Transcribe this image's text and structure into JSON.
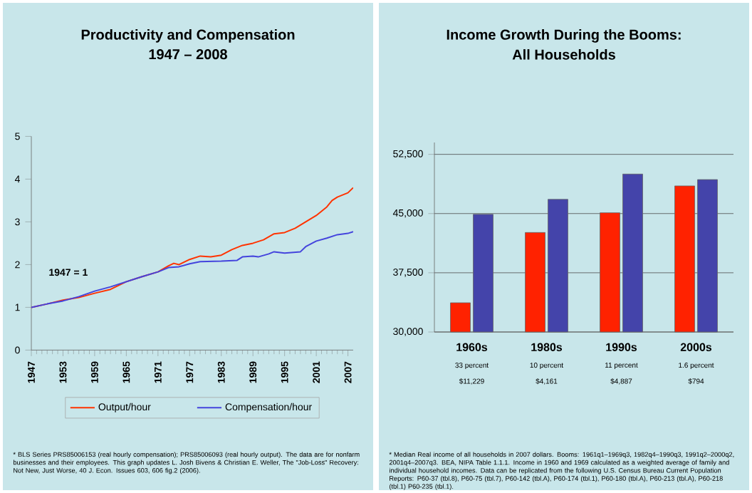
{
  "chart_data": [
    {
      "type": "line",
      "title": "Productivity and Compensation",
      "subtitle": "1947 – 2008",
      "xlim": [
        1947,
        2008
      ],
      "xticks": [
        1947,
        1953,
        1959,
        1965,
        1971,
        1977,
        1983,
        1989,
        1995,
        2001,
        2007
      ],
      "ylim": [
        0,
        5
      ],
      "yticks": [
        0,
        1,
        2,
        3,
        4,
        5
      ],
      "legend": "bottom",
      "grid": false,
      "series": [
        {
          "name": "Output/hour",
          "color": "#ff3300",
          "x": [
            1947,
            1950,
            1953,
            1956,
            1959,
            1962,
            1965,
            1968,
            1971,
            1973,
            1974,
            1975,
            1977,
            1979,
            1981,
            1983,
            1985,
            1987,
            1989,
            1991,
            1993,
            1995,
            1997,
            1999,
            2001,
            2003,
            2004,
            2005,
            2007,
            2008
          ],
          "values": [
            1.0,
            1.08,
            1.17,
            1.23,
            1.33,
            1.42,
            1.6,
            1.72,
            1.83,
            1.97,
            2.03,
            2.0,
            2.12,
            2.2,
            2.18,
            2.22,
            2.35,
            2.45,
            2.5,
            2.58,
            2.72,
            2.75,
            2.85,
            3.0,
            3.15,
            3.35,
            3.5,
            3.58,
            3.68,
            3.8
          ]
        },
        {
          "name": "Compensation/hour",
          "color": "#4444dd",
          "x": [
            1947,
            1950,
            1953,
            1956,
            1959,
            1962,
            1965,
            1968,
            1971,
            1973,
            1975,
            1977,
            1979,
            1983,
            1986,
            1987,
            1989,
            1990,
            1992,
            1993,
            1995,
            1998,
            1999,
            2001,
            2003,
            2005,
            2007,
            2008
          ],
          "values": [
            1.0,
            1.08,
            1.15,
            1.25,
            1.38,
            1.48,
            1.6,
            1.72,
            1.83,
            1.93,
            1.95,
            2.02,
            2.07,
            2.08,
            2.1,
            2.18,
            2.2,
            2.18,
            2.25,
            2.3,
            2.27,
            2.3,
            2.42,
            2.55,
            2.62,
            2.7,
            2.73,
            2.77
          ]
        }
      ],
      "annotations": [
        "1947 = 1",
        "* BLS Series PRS85006153 (real hourly compensation); PRS85006093 (real hourly output). The data are for nonfarm businesses and their employees. This graph updates L. Josh Bivens & Christian E. Weller, The \"Job-Loss\" Recovery: Not New, Just Worse, 40 J. Econ. Issues 603, 606 fig.2 (2006)."
      ]
    },
    {
      "type": "bar",
      "title": "Income Growth During the Booms:",
      "subtitle": "All Households",
      "categories": [
        "1960s",
        "1980s",
        "1990s",
        "2000s"
      ],
      "ylim": [
        30000,
        54000
      ],
      "yticks": [
        {
          "value": 30000,
          "label": "30,000"
        },
        {
          "value": 37500,
          "label": "37,500"
        },
        {
          "value": 45000,
          "label": "45,000"
        },
        {
          "value": 52500,
          "label": "52,500"
        }
      ],
      "grid": "y",
      "series": [
        {
          "color": "#ff2200",
          "values": [
            33700,
            42600,
            45100,
            48500
          ]
        },
        {
          "color": "#4444aa",
          "values": [
            44900,
            46800,
            50000,
            49300
          ]
        }
      ],
      "annotations": [
        "33 percent",
        "$11,229",
        "10 percent",
        "$4,161",
        "11 percent",
        "$4,887",
        "1.6 percent",
        "$794",
        "* Median Real income of all households in 2007 dollars. Booms: 1961q1–1969q3, 1982q4–1990q3, 1991q2–2000q2, 2001q4–2007q3. BEA, NIPA Table 1.1.1. Income in 1960 and 1969 calculated as a weighted average of family and individual household incomes. Data can be replicated from the following U.S. Census Bureau Current Population Reports: P60-37 (tbl.8), P60-75 (tbl.7), P60-142 (tbl.A), P60-174 (tbl.1), P60-180 (tbl.A), P60-213 (tbl.A), P60-218 (tbl.1) P60-235 (tbl.1)."
      ]
    }
  ]
}
